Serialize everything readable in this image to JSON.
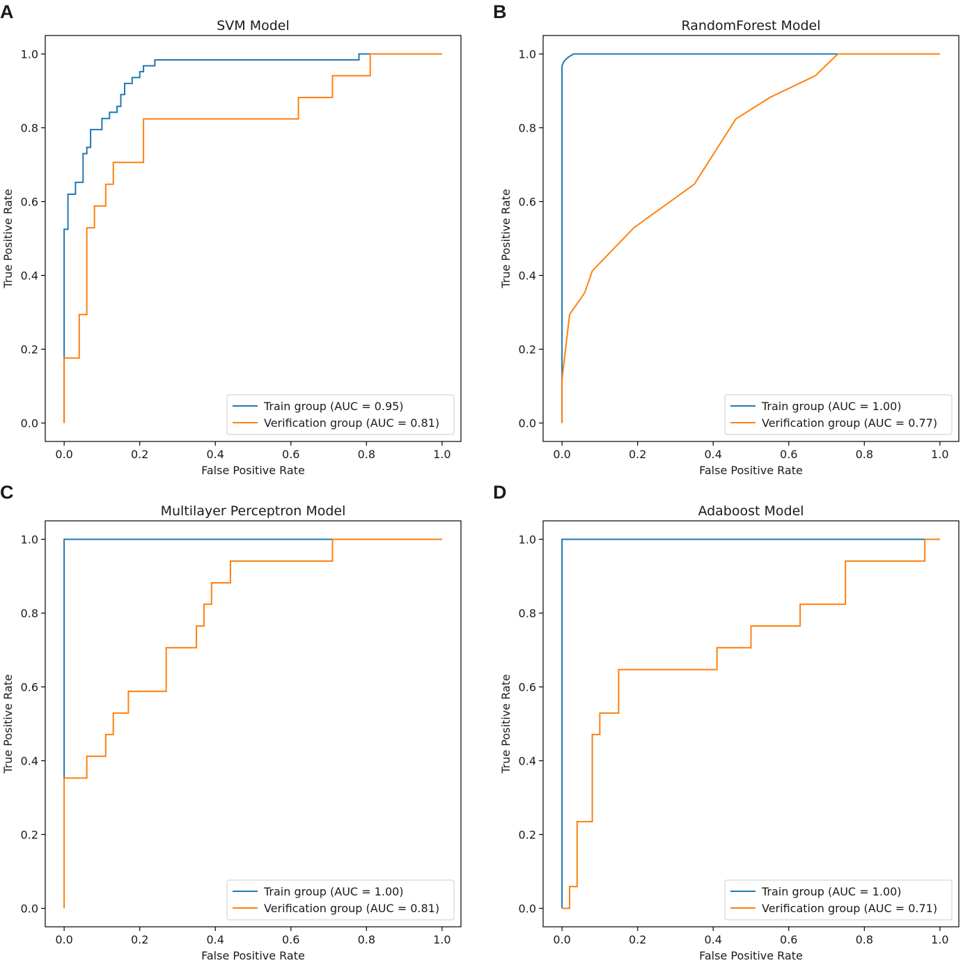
{
  "chart_data": [
    {
      "panel": "A",
      "type": "line",
      "title": "SVM Model",
      "xlabel": "False Positive Rate",
      "ylabel": "True Positive Rate",
      "xlim": [
        -0.05,
        1.05
      ],
      "ylim": [
        -0.05,
        1.05
      ],
      "xticks": [
        "0.0",
        "0.2",
        "0.4",
        "0.6",
        "0.8",
        "1.0"
      ],
      "yticks": [
        "0.0",
        "0.2",
        "0.4",
        "0.6",
        "0.8",
        "1.0"
      ],
      "legend_position": "lower-right",
      "series": [
        {
          "name": "Train group (AUC = 0.95)",
          "color": "#1f77b4",
          "x": [
            0,
            0,
            0.01,
            0.01,
            0.03,
            0.03,
            0.05,
            0.05,
            0.06,
            0.06,
            0.07,
            0.07,
            0.1,
            0.1,
            0.12,
            0.12,
            0.14,
            0.14,
            0.15,
            0.15,
            0.16,
            0.16,
            0.18,
            0.18,
            0.2,
            0.2,
            0.21,
            0.21,
            0.23,
            0.23,
            0.24,
            0.24,
            0.78,
            0.78,
            1.0
          ],
          "y": [
            0,
            0.525,
            0.525,
            0.62,
            0.62,
            0.652,
            0.652,
            0.73,
            0.73,
            0.747,
            0.747,
            0.795,
            0.795,
            0.825,
            0.825,
            0.842,
            0.842,
            0.858,
            0.858,
            0.89,
            0.89,
            0.92,
            0.92,
            0.936,
            0.936,
            0.952,
            0.952,
            0.968,
            0.968,
            0.968,
            0.968,
            0.984,
            0.984,
            1.0,
            1.0
          ]
        },
        {
          "name": "Verification group (AUC = 0.81)",
          "color": "#ff7f0e",
          "x": [
            0,
            0,
            0.04,
            0.04,
            0.06,
            0.06,
            0.08,
            0.08,
            0.11,
            0.11,
            0.13,
            0.13,
            0.21,
            0.21,
            0.62,
            0.62,
            0.71,
            0.71,
            0.81,
            0.81,
            1.0
          ],
          "y": [
            0,
            0.176,
            0.176,
            0.294,
            0.294,
            0.529,
            0.529,
            0.588,
            0.588,
            0.647,
            0.647,
            0.706,
            0.706,
            0.824,
            0.824,
            0.882,
            0.882,
            0.941,
            0.941,
            1.0,
            1.0
          ]
        }
      ]
    },
    {
      "panel": "B",
      "type": "line",
      "title": "RandomForest Model",
      "xlabel": "False Positive Rate",
      "ylabel": "True Positive Rate",
      "xlim": [
        -0.05,
        1.05
      ],
      "ylim": [
        -0.05,
        1.05
      ],
      "xticks": [
        "0.0",
        "0.2",
        "0.4",
        "0.6",
        "0.8",
        "1.0"
      ],
      "yticks": [
        "0.0",
        "0.2",
        "0.4",
        "0.6",
        "0.8",
        "1.0"
      ],
      "legend_position": "lower-right",
      "series": [
        {
          "name": "Train group (AUC = 1.00)",
          "color": "#1f77b4",
          "x": [
            0,
            0,
            0.005,
            0.015,
            0.03,
            1.0
          ],
          "y": [
            0,
            0.968,
            0.98,
            0.99,
            1.0,
            1.0
          ]
        },
        {
          "name": "Verification group (AUC = 0.77)",
          "color": "#ff7f0e",
          "x": [
            0,
            0,
            0.02,
            0.06,
            0.08,
            0.19,
            0.35,
            0.46,
            0.55,
            0.67,
            0.73,
            1.0
          ],
          "y": [
            0,
            0.118,
            0.294,
            0.353,
            0.412,
            0.529,
            0.647,
            0.824,
            0.882,
            0.941,
            1.0,
            1.0
          ]
        }
      ]
    },
    {
      "panel": "C",
      "type": "line",
      "title": "Multilayer Perceptron Model",
      "xlabel": "False Positive Rate",
      "ylabel": "True Positive Rate",
      "xlim": [
        -0.05,
        1.05
      ],
      "ylim": [
        -0.05,
        1.05
      ],
      "xticks": [
        "0.0",
        "0.2",
        "0.4",
        "0.6",
        "0.8",
        "1.0"
      ],
      "yticks": [
        "0.0",
        "0.2",
        "0.4",
        "0.6",
        "0.8",
        "1.0"
      ],
      "legend_position": "lower-right",
      "series": [
        {
          "name": "Train group (AUC = 1.00)",
          "color": "#1f77b4",
          "x": [
            0,
            0,
            1.0
          ],
          "y": [
            0.35,
            1.0,
            1.0
          ]
        },
        {
          "name": "Verification group (AUC = 0.81)",
          "color": "#ff7f0e",
          "x": [
            0,
            0,
            0.06,
            0.06,
            0.11,
            0.11,
            0.13,
            0.13,
            0.17,
            0.17,
            0.27,
            0.27,
            0.35,
            0.35,
            0.37,
            0.37,
            0.39,
            0.39,
            0.44,
            0.44,
            0.71,
            0.71,
            1.0
          ],
          "y": [
            0,
            0.353,
            0.353,
            0.412,
            0.412,
            0.471,
            0.471,
            0.529,
            0.529,
            0.588,
            0.588,
            0.706,
            0.706,
            0.765,
            0.765,
            0.824,
            0.824,
            0.882,
            0.882,
            0.941,
            0.941,
            1.0,
            1.0
          ]
        }
      ]
    },
    {
      "panel": "D",
      "type": "line",
      "title": "Adaboost Model",
      "xlabel": "False Positive Rate",
      "ylabel": "True Positive Rate",
      "xlim": [
        -0.05,
        1.05
      ],
      "ylim": [
        -0.05,
        1.05
      ],
      "xticks": [
        "0.0",
        "0.2",
        "0.4",
        "0.6",
        "0.8",
        "1.0"
      ],
      "yticks": [
        "0.0",
        "0.2",
        "0.4",
        "0.6",
        "0.8",
        "1.0"
      ],
      "legend_position": "lower-right",
      "series": [
        {
          "name": "Train group (AUC = 1.00)",
          "color": "#1f77b4",
          "x": [
            0,
            0,
            0.96,
            0.96
          ],
          "y": [
            0,
            1.0,
            1.0,
            0.998
          ]
        },
        {
          "name": "Verification group (AUC = 0.71)",
          "color": "#ff7f0e",
          "x": [
            0,
            0,
            0.02,
            0.02,
            0.04,
            0.04,
            0.08,
            0.08,
            0.1,
            0.1,
            0.15,
            0.15,
            0.41,
            0.41,
            0.5,
            0.5,
            0.63,
            0.63,
            0.75,
            0.75,
            0.96,
            0.96,
            1.0
          ],
          "y": [
            0,
            0,
            0,
            0.059,
            0.059,
            0.235,
            0.235,
            0.471,
            0.471,
            0.529,
            0.529,
            0.647,
            0.647,
            0.706,
            0.706,
            0.765,
            0.765,
            0.824,
            0.824,
            0.941,
            0.941,
            1.0,
            1.0
          ]
        }
      ]
    }
  ]
}
